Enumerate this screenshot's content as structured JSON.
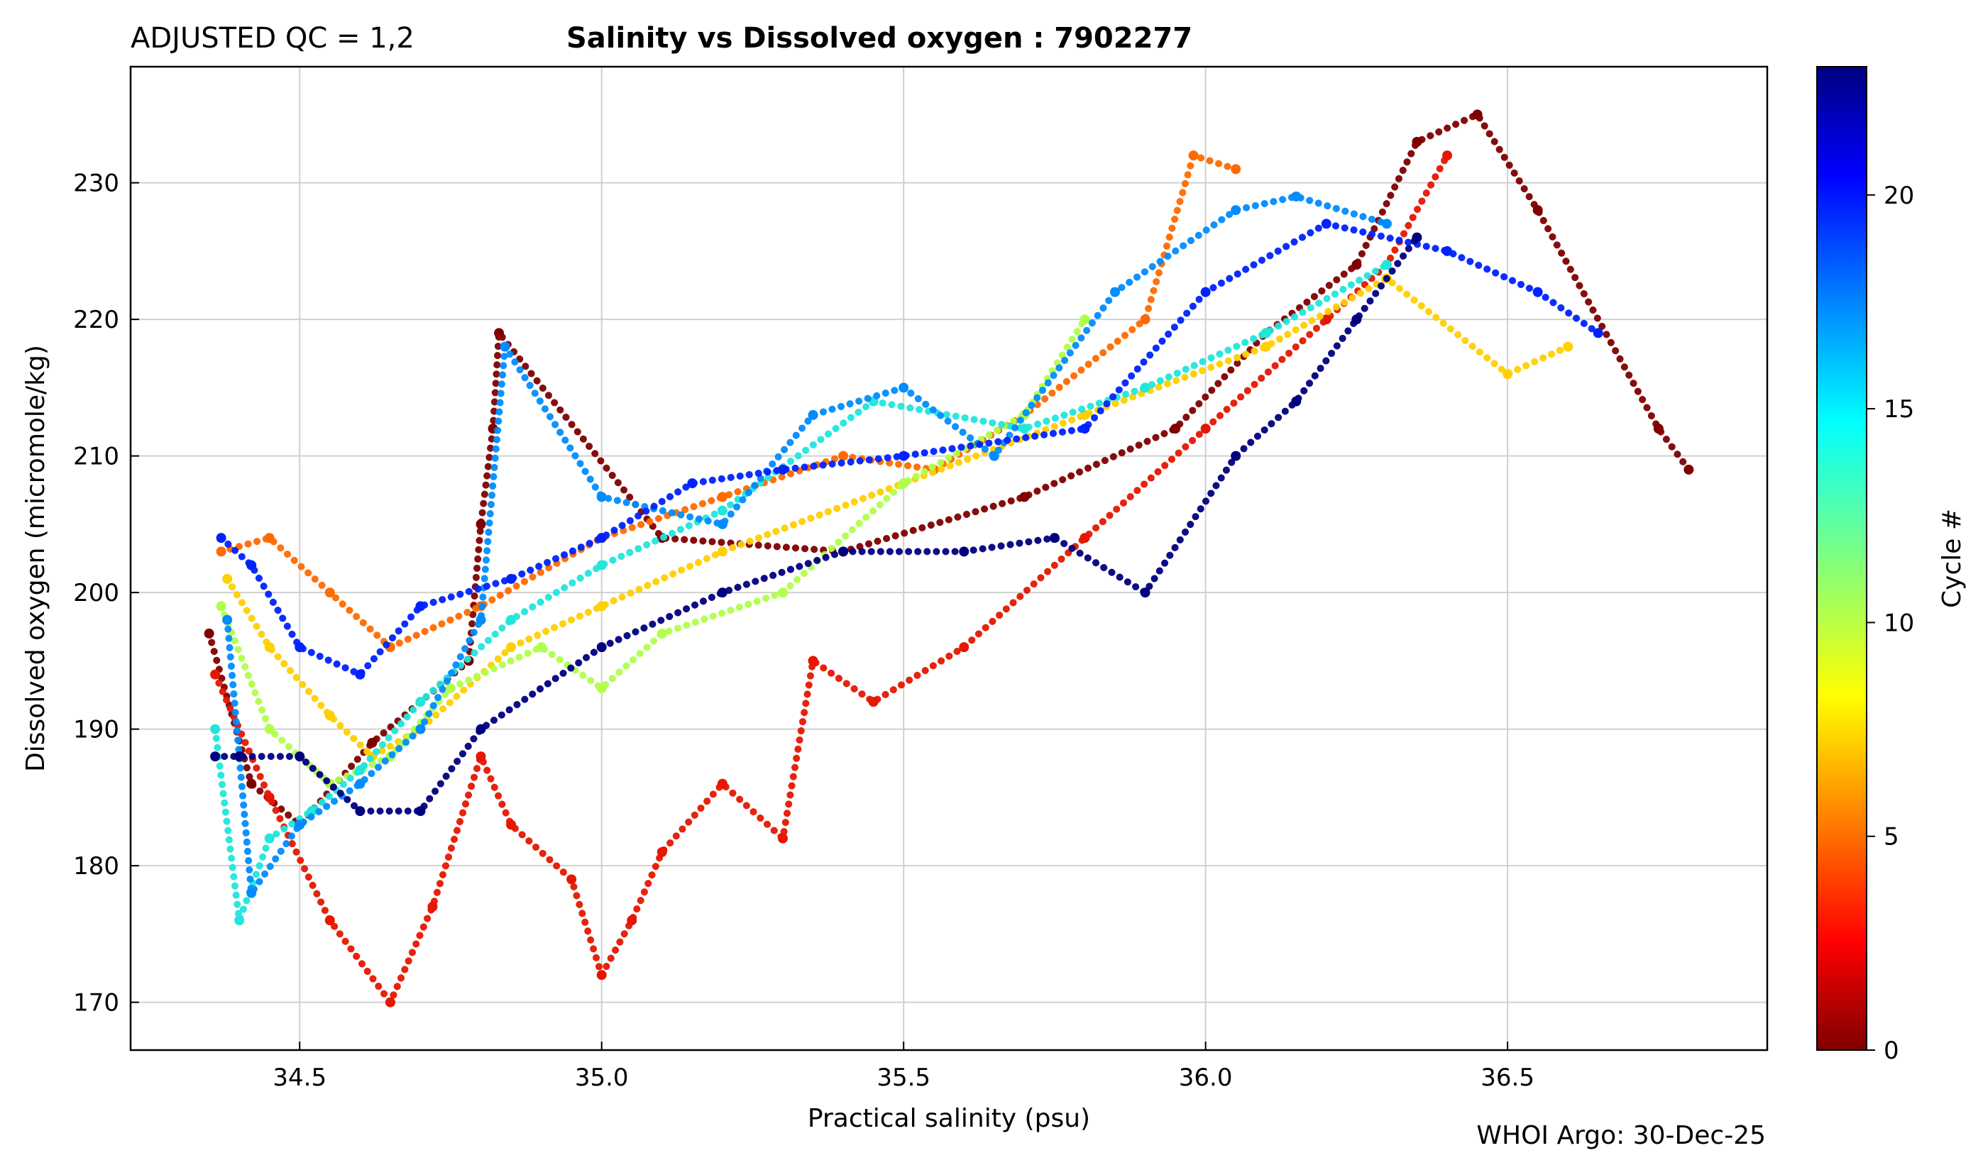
{
  "header": {
    "qc_label": "ADJUSTED QC = 1,2",
    "title": "Salinity vs Dissolved oxygen : 7902277"
  },
  "footer": {
    "credit": "WHOI Argo: 30-Dec-25"
  },
  "chart_data": {
    "type": "scatter",
    "title": "Salinity vs Dissolved oxygen : 7902277",
    "xlabel": "Practical salinity  (psu)",
    "ylabel": "Dissolved oxygen  (micromole/kg)",
    "xlim": [
      34.22,
      36.93
    ],
    "ylim": [
      166.5,
      238.5
    ],
    "xticks": [
      34.5,
      35.0,
      35.5,
      36.0,
      36.5
    ],
    "xtick_labels": [
      "34.5",
      "35.0",
      "35.5",
      "36.0",
      "36.5"
    ],
    "yticks": [
      170,
      180,
      190,
      200,
      210,
      220,
      230
    ],
    "ytick_labels": [
      "170",
      "180",
      "190",
      "200",
      "210",
      "220",
      "230"
    ],
    "grid": true,
    "colorbar": {
      "label": "Cycle #",
      "range": [
        0,
        23
      ],
      "ticks": [
        0,
        5,
        10,
        15,
        20
      ],
      "tick_labels": [
        "0",
        "5",
        "10",
        "15",
        "20"
      ],
      "colormap": "jet"
    },
    "series": [
      {
        "name": "cycle 0",
        "cycle": 0,
        "color": "#800000",
        "x": [
          34.35,
          34.42,
          34.5,
          34.62,
          34.78,
          34.8,
          34.82,
          34.83,
          35.1,
          35.4,
          35.7,
          35.95,
          36.1,
          36.25,
          36.35,
          36.45,
          36.55,
          36.75,
          36.8
        ],
        "y": [
          197,
          186,
          183,
          189,
          195,
          205,
          212,
          219,
          204,
          203,
          207,
          212,
          219,
          224,
          233,
          235,
          228,
          212,
          209
        ]
      },
      {
        "name": "cycle 2",
        "cycle": 2,
        "color": "#e61600",
        "x": [
          34.36,
          34.45,
          34.55,
          34.65,
          34.72,
          34.8,
          34.85,
          34.95,
          35.0,
          35.05,
          35.1,
          35.2,
          35.3,
          35.35,
          35.45,
          35.6,
          35.8,
          36.0,
          36.2,
          36.3,
          36.4
        ],
        "y": [
          194,
          185,
          176,
          170,
          177,
          188,
          183,
          179,
          172,
          176,
          181,
          186,
          182,
          195,
          192,
          196,
          204,
          212,
          220,
          224,
          232
        ]
      },
      {
        "name": "cycle 4",
        "cycle": 4,
        "color": "#ff6a00",
        "x": [
          34.37,
          34.45,
          34.55,
          34.65,
          34.8,
          35.0,
          35.2,
          35.4,
          35.55,
          35.7,
          35.9,
          35.98,
          36.05
        ],
        "y": [
          203,
          204,
          200,
          196,
          199,
          204,
          207,
          210,
          209,
          213,
          220,
          232,
          231
        ]
      },
      {
        "name": "cycle 7",
        "cycle": 7,
        "color": "#ffd000",
        "x": [
          34.38,
          34.45,
          34.55,
          34.62,
          34.7,
          34.85,
          35.0,
          35.2,
          35.5,
          35.8,
          36.1,
          36.3,
          36.5,
          36.6
        ],
        "y": [
          201,
          196,
          191,
          188,
          190,
          196,
          199,
          203,
          208,
          213,
          218,
          223,
          216,
          218
        ]
      },
      {
        "name": "cycle 10",
        "cycle": 10,
        "color": "#b0ff4a",
        "x": [
          34.37,
          34.45,
          34.55,
          34.65,
          34.75,
          34.9,
          35.0,
          35.1,
          35.3,
          35.5,
          35.7,
          35.8
        ],
        "y": [
          199,
          190,
          186,
          188,
          193,
          196,
          193,
          197,
          200,
          208,
          213,
          220
        ]
      },
      {
        "name": "cycle 14",
        "cycle": 14,
        "color": "#20e6dc",
        "x": [
          34.36,
          34.4,
          34.45,
          34.52,
          34.6,
          34.7,
          34.85,
          35.0,
          35.2,
          35.45,
          35.7,
          35.9,
          36.1,
          36.3
        ],
        "y": [
          190,
          176,
          182,
          184,
          187,
          192,
          198,
          202,
          206,
          214,
          212,
          215,
          219,
          224
        ]
      },
      {
        "name": "cycle 17",
        "cycle": 17,
        "color": "#008cff",
        "x": [
          34.38,
          34.42,
          34.5,
          34.6,
          34.7,
          34.8,
          34.84,
          35.0,
          35.2,
          35.35,
          35.5,
          35.65,
          35.85,
          36.05,
          36.15,
          36.3
        ],
        "y": [
          198,
          178,
          183,
          186,
          190,
          198,
          218,
          207,
          205,
          213,
          215,
          210,
          222,
          228,
          229,
          227
        ]
      },
      {
        "name": "cycle 20",
        "cycle": 20,
        "color": "#0022ff",
        "x": [
          34.37,
          34.42,
          34.5,
          34.6,
          34.7,
          34.85,
          35.0,
          35.15,
          35.3,
          35.5,
          35.8,
          36.0,
          36.2,
          36.4,
          36.55,
          36.65
        ],
        "y": [
          204,
          202,
          196,
          194,
          199,
          201,
          204,
          208,
          209,
          210,
          212,
          222,
          227,
          225,
          222,
          219
        ]
      },
      {
        "name": "cycle 23",
        "cycle": 23,
        "color": "#00007f",
        "x": [
          34.36,
          34.4,
          34.5,
          34.6,
          34.7,
          34.8,
          35.0,
          35.2,
          35.4,
          35.6,
          35.75,
          35.9,
          36.05,
          36.15,
          36.25,
          36.35
        ],
        "y": [
          188,
          188,
          188,
          184,
          184,
          190,
          196,
          200,
          203,
          203,
          204,
          200,
          210,
          214,
          220,
          226
        ]
      }
    ]
  }
}
